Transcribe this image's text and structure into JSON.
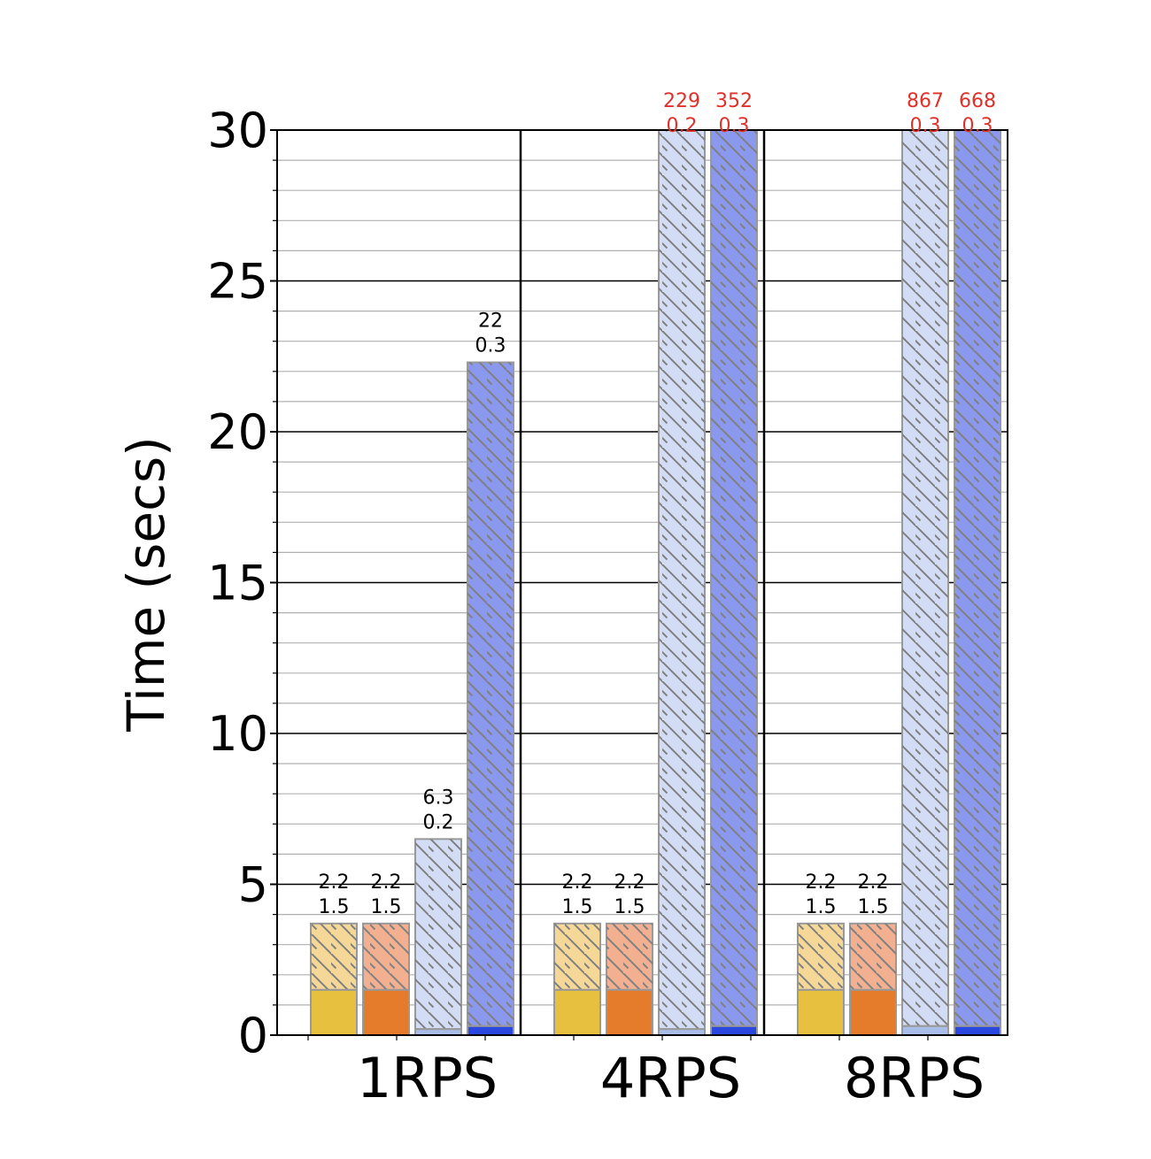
{
  "chart_data": {
    "type": "bar",
    "stacked": true,
    "title": "",
    "xlabel": "",
    "ylabel": "Time (secs)",
    "ylim": [
      0,
      30
    ],
    "yticks": [
      "0",
      "5",
      "10",
      "15",
      "20",
      "25",
      "30"
    ],
    "grid": true,
    "categories": [
      "1RPS",
      "4RPS",
      "8RPS"
    ],
    "bar_colors": [
      {
        "solid": "#e8c040",
        "hatched": "#f5d898"
      },
      {
        "solid": "#e57c2c",
        "hatched": "#f2b090"
      },
      {
        "solid": "#a8bde8",
        "hatched": "#d2ddf5"
      },
      {
        "solid": "#2a48e0",
        "hatched": "#8a98ee"
      }
    ],
    "label_colors": {
      "normal": "#000000",
      "overflow": "#e0302a"
    },
    "groups": [
      {
        "category": "1RPS",
        "bars": [
          {
            "bottom": 1.5,
            "top": 2.2,
            "label_top": "2.2",
            "label_bottom": "1.5",
            "overflow": false
          },
          {
            "bottom": 1.5,
            "top": 2.2,
            "label_top": "2.2",
            "label_bottom": "1.5",
            "overflow": false
          },
          {
            "bottom": 0.2,
            "top": 6.3,
            "label_top": "6.3",
            "label_bottom": "0.2",
            "overflow": false
          },
          {
            "bottom": 0.3,
            "top": 22,
            "label_top": "22",
            "label_bottom": "0.3",
            "overflow": false
          }
        ]
      },
      {
        "category": "4RPS",
        "bars": [
          {
            "bottom": 1.5,
            "top": 2.2,
            "label_top": "2.2",
            "label_bottom": "1.5",
            "overflow": false
          },
          {
            "bottom": 1.5,
            "top": 2.2,
            "label_top": "2.2",
            "label_bottom": "1.5",
            "overflow": false
          },
          {
            "bottom": 0.2,
            "top": 229,
            "label_top": "229",
            "label_bottom": "0.2",
            "overflow": true
          },
          {
            "bottom": 0.3,
            "top": 352,
            "label_top": "352",
            "label_bottom": "0.3",
            "overflow": true
          }
        ]
      },
      {
        "category": "8RPS",
        "bars": [
          {
            "bottom": 1.5,
            "top": 2.2,
            "label_top": "2.2",
            "label_bottom": "1.5",
            "overflow": false
          },
          {
            "bottom": 1.5,
            "top": 2.2,
            "label_top": "2.2",
            "label_bottom": "1.5",
            "overflow": false
          },
          {
            "bottom": 0.3,
            "top": 867,
            "label_top": "867",
            "label_bottom": "0.3",
            "overflow": true
          },
          {
            "bottom": 0.3,
            "top": 668,
            "label_top": "668",
            "label_bottom": "0.3",
            "overflow": true
          }
        ]
      }
    ]
  }
}
